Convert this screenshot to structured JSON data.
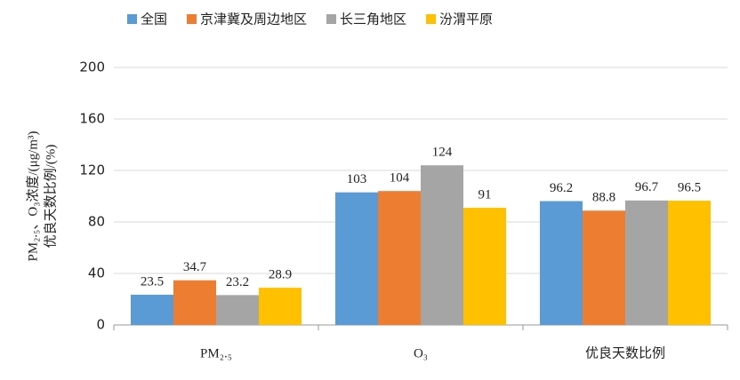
{
  "chart_data": {
    "type": "bar",
    "ylabel": [
      "PM₂.₅、O₃浓度/(μg/m³)",
      "优良天数比例/(%)"
    ],
    "categories": [
      "PM₂.₅",
      "O₃",
      "优良天数比例"
    ],
    "series": [
      {
        "name": "全国",
        "color": "#5b9bd5",
        "values": [
          23.5,
          103,
          96.2
        ]
      },
      {
        "name": "京津冀及周边地区",
        "color": "#ed7d31",
        "values": [
          34.7,
          104,
          88.8
        ]
      },
      {
        "name": "长三角地区",
        "color": "#a5a5a5",
        "values": [
          23.2,
          124,
          96.7
        ]
      },
      {
        "name": "汾渭平原",
        "color": "#ffc000",
        "values": [
          28.9,
          91,
          96.5
        ]
      }
    ],
    "ylim": [
      0,
      200
    ],
    "yticks": [
      0,
      40,
      80,
      120,
      160,
      200
    ],
    "grid": true,
    "legend": "top"
  }
}
